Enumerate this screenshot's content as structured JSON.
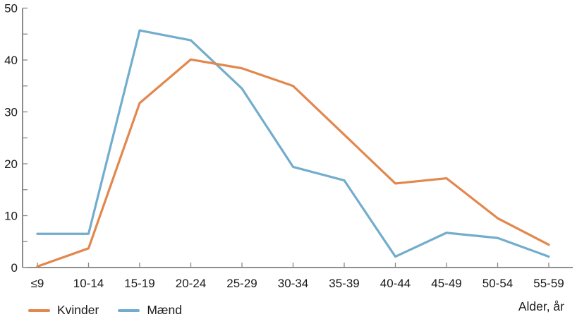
{
  "chart_data": {
    "type": "line",
    "title": "",
    "xlabel": "Alder, år",
    "ylabel": "",
    "categories": [
      "≤9",
      "10-14",
      "15-19",
      "20-24",
      "25-29",
      "30-34",
      "35-39",
      "40-44",
      "45-49",
      "50-54",
      "55-59"
    ],
    "series": [
      {
        "name": "Kvinder",
        "color": "#E2874D",
        "values": [
          0.2,
          3.7,
          31.7,
          40.1,
          38.4,
          35.0,
          25.6,
          16.2,
          17.2,
          9.5,
          4.4
        ]
      },
      {
        "name": "Mænd",
        "color": "#72ADCD",
        "values": [
          6.5,
          6.5,
          45.7,
          43.8,
          34.5,
          19.4,
          16.8,
          2.1,
          6.7,
          5.7,
          2.1
        ]
      }
    ],
    "ylim": [
      0,
      50
    ],
    "ytick_minor_step": 5,
    "ytick_label_step": 10,
    "ytick_labels": [
      "0",
      "10",
      "20",
      "30",
      "40",
      "50"
    ],
    "grid": false,
    "legend_position": "bottom-left"
  },
  "colors": {
    "axis": "#4d4d4d",
    "tick": "#888888",
    "label_text": "#1a1a1a"
  }
}
